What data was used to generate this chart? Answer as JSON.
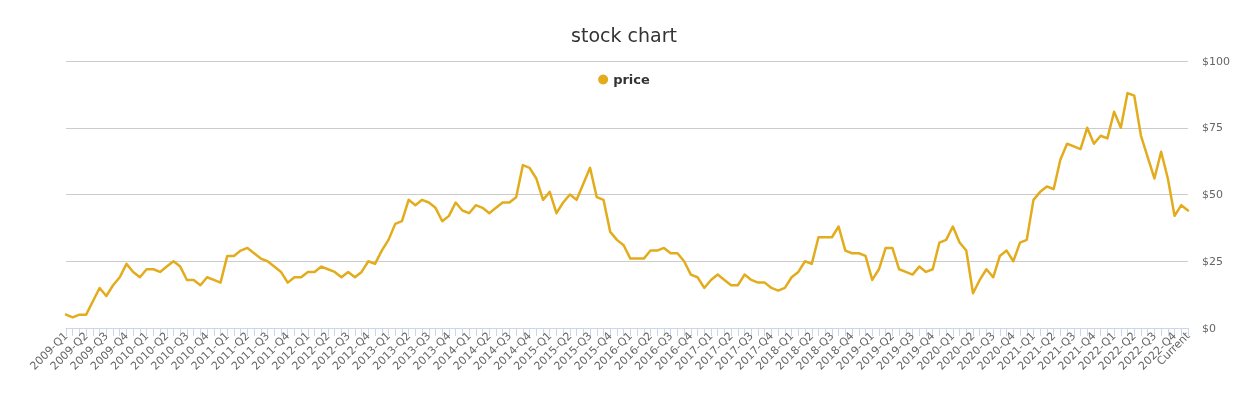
{
  "chart_data": {
    "type": "line",
    "title": "stock chart",
    "categories": [
      "2009-Q1",
      null,
      null,
      "2009-Q2",
      null,
      null,
      "2009-Q3",
      null,
      null,
      "2009-Q4",
      null,
      null,
      "2010-Q1",
      null,
      null,
      "2010-Q2",
      null,
      null,
      "2010-Q3",
      null,
      null,
      "2010-Q4",
      null,
      null,
      "2011-Q1",
      null,
      null,
      "2011-Q2",
      null,
      null,
      "2011-Q3",
      null,
      null,
      "2011-Q4",
      null,
      null,
      "2012-Q1",
      null,
      null,
      "2012-Q2",
      null,
      null,
      "2012-Q3",
      null,
      null,
      "2012-Q4",
      null,
      null,
      "2013-Q1",
      null,
      null,
      "2013-Q2",
      null,
      null,
      "2013-Q3",
      null,
      null,
      "2013-Q4",
      null,
      null,
      "2014-Q1",
      null,
      null,
      "2014-Q2",
      null,
      null,
      "2014-Q3",
      null,
      null,
      "2014-Q4",
      null,
      null,
      "2015-Q1",
      null,
      null,
      "2015-Q2",
      null,
      null,
      "2015-Q3",
      null,
      null,
      "2015-Q4",
      null,
      null,
      "2016-Q1",
      null,
      null,
      "2016-Q2",
      null,
      null,
      "2016-Q3",
      null,
      null,
      "2016-Q4",
      null,
      null,
      "2017-Q1",
      null,
      null,
      "2017-Q2",
      null,
      null,
      "2017-Q3",
      null,
      null,
      "2017-Q4",
      null,
      null,
      "2018-Q1",
      null,
      null,
      "2018-Q2",
      null,
      null,
      "2018-Q3",
      null,
      null,
      "2018-Q4",
      null,
      null,
      "2019-Q1",
      null,
      null,
      "2019-Q2",
      null,
      null,
      "2019-Q3",
      null,
      null,
      "2019-Q4",
      null,
      null,
      "2020-Q1",
      null,
      null,
      "2020-Q2",
      null,
      null,
      "2020-Q3",
      null,
      null,
      "2020-Q4",
      null,
      null,
      "2021-Q1",
      null,
      null,
      "2021-Q2",
      null,
      null,
      "2021-Q3",
      null,
      null,
      "2021-Q4",
      null,
      null,
      "2022-Q1",
      null,
      null,
      "2022-Q2",
      null,
      null,
      "2022-Q3",
      null,
      null,
      "2022-Q4",
      null,
      "Current"
    ],
    "series": [
      {
        "name": "price",
        "color": "#e3ac1d",
        "values": [
          5,
          4,
          5,
          5,
          10,
          15,
          12,
          16,
          19,
          24,
          21,
          19,
          22,
          22,
          21,
          23,
          25,
          23,
          18,
          18,
          16,
          19,
          18,
          17,
          27,
          27,
          29,
          30,
          28,
          26,
          25,
          23,
          21,
          17,
          19,
          19,
          21,
          21,
          23,
          22,
          21,
          19,
          21,
          19,
          21,
          25,
          24,
          29,
          33,
          39,
          40,
          48,
          46,
          48,
          47,
          45,
          40,
          42,
          47,
          44,
          43,
          46,
          45,
          43,
          45,
          47,
          47,
          49,
          61,
          60,
          56,
          48,
          51,
          43,
          47,
          50,
          48,
          54,
          60,
          49,
          48,
          36,
          33,
          31,
          26,
          26,
          26,
          29,
          29,
          30,
          28,
          28,
          25,
          20,
          19,
          15,
          18,
          20,
          18,
          16,
          16,
          20,
          18,
          17,
          17,
          15,
          14,
          15,
          19,
          21,
          25,
          24,
          34,
          34,
          34,
          38,
          29,
          28,
          28,
          27,
          18,
          22,
          30,
          30,
          22,
          21,
          20,
          23,
          21,
          22,
          32,
          33,
          38,
          32,
          29,
          13,
          18,
          22,
          19,
          27,
          29,
          25,
          32,
          33,
          48,
          51,
          53,
          52,
          63,
          69,
          68,
          67,
          75,
          69,
          72,
          71,
          81,
          75,
          88,
          87,
          72,
          64,
          56,
          66,
          56,
          42,
          46,
          44
        ]
      }
    ],
    "ylim": [
      0,
      100
    ],
    "yticks": [
      {
        "value": 0,
        "label": "$0"
      },
      {
        "value": 25,
        "label": "$25"
      },
      {
        "value": 50,
        "label": "$50"
      },
      {
        "value": 75,
        "label": "$75"
      },
      {
        "value": 100,
        "label": "$100"
      }
    ],
    "grid": "y",
    "legend": "top",
    "marker": "none",
    "line_style": "solid"
  }
}
